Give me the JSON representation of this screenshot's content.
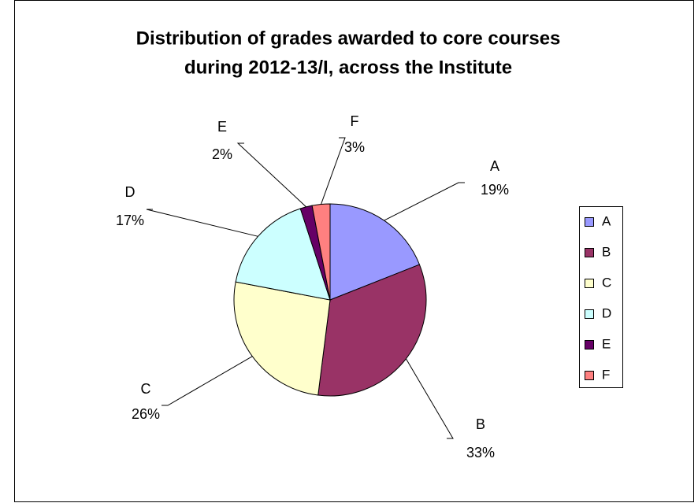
{
  "chart_data": {
    "type": "pie",
    "title": [
      "Distribution of grades awarded to core courses",
      "during 2012-13/I, across the Institute"
    ],
    "categories": [
      "A",
      "B",
      "C",
      "D",
      "E",
      "F"
    ],
    "values": [
      19,
      33,
      26,
      17,
      2,
      3
    ],
    "value_labels": [
      "19%",
      "33%",
      "26%",
      "17%",
      "2%",
      "3%"
    ],
    "colors": [
      "#9999ff",
      "#993366",
      "#ffffcc",
      "#ccffff",
      "#660066",
      "#ff8080"
    ],
    "legend": "right"
  }
}
